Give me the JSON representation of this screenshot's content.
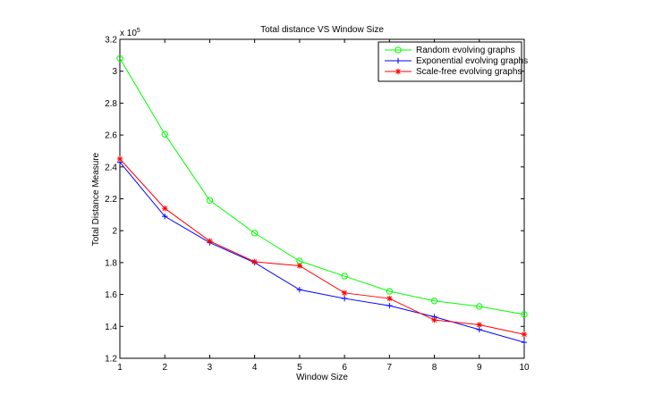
{
  "chart_data": {
    "type": "line",
    "title": "Total distance VS Window Size",
    "xlabel": "Window Size",
    "ylabel": "Total Distance Measure",
    "y_exponent_label": "x 10",
    "y_exponent_power": "5",
    "xlim": [
      1,
      10
    ],
    "ylim": [
      1.2,
      3.2
    ],
    "x_ticks": [
      "1",
      "2",
      "3",
      "4",
      "5",
      "6",
      "7",
      "8",
      "9",
      "10"
    ],
    "y_ticks": [
      "1.2",
      "1.4",
      "1.6",
      "1.8",
      "2",
      "2.2",
      "2.4",
      "2.6",
      "2.8",
      "3",
      "3.2"
    ],
    "grid": false,
    "legend_position": "top-right",
    "x": [
      1,
      2,
      3,
      4,
      5,
      6,
      7,
      8,
      9,
      10
    ],
    "series": [
      {
        "name": "Random evolving graphs",
        "color": "#00ff00",
        "marker": "circle",
        "values": [
          3.08,
          2.605,
          2.19,
          1.985,
          1.81,
          1.715,
          1.62,
          1.56,
          1.525,
          1.475
        ]
      },
      {
        "name": "Exponential evolving graphs",
        "color": "#0000ff",
        "marker": "plus",
        "values": [
          2.43,
          2.09,
          1.925,
          1.8,
          1.63,
          1.575,
          1.53,
          1.46,
          1.38,
          1.3
        ]
      },
      {
        "name": "Scale-free evolving graphs",
        "color": "#ff0000",
        "marker": "star",
        "values": [
          2.45,
          2.14,
          1.935,
          1.805,
          1.78,
          1.61,
          1.575,
          1.44,
          1.41,
          1.35
        ]
      }
    ]
  }
}
